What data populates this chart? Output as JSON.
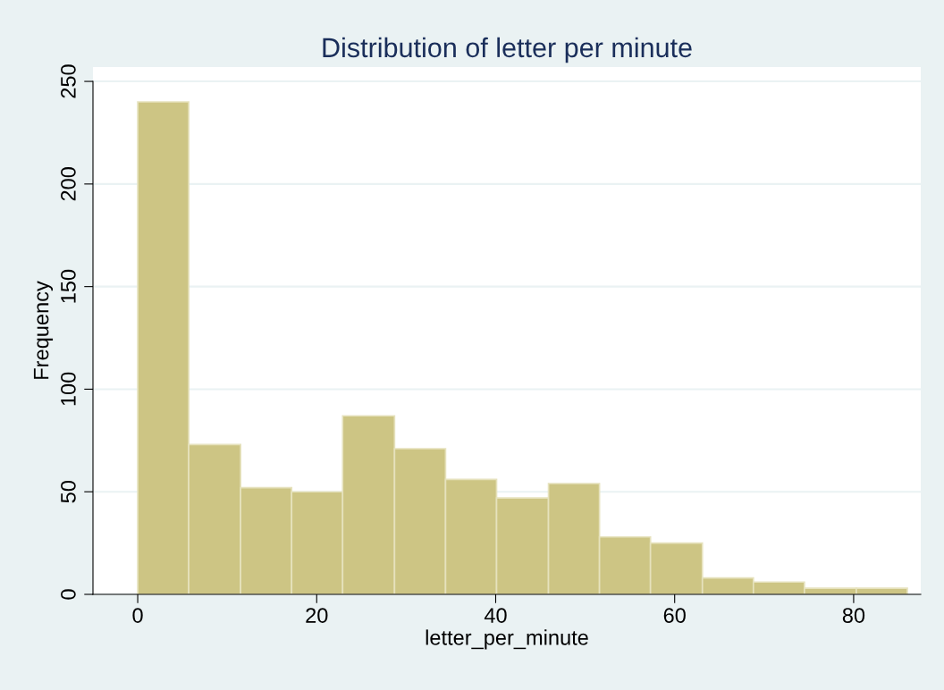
{
  "chart_data": {
    "type": "histogram",
    "title": "Distribution of letter per minute",
    "xlabel": "letter_per_minute",
    "ylabel": "Frequency",
    "bins": [
      0,
      5.7,
      11.5,
      17.2,
      22.9,
      28.7,
      34.4,
      40.1,
      45.9,
      51.6,
      57.3,
      63.1,
      68.8,
      74.5,
      80.3,
      86
    ],
    "values": [
      240,
      73,
      52,
      50,
      87,
      71,
      56,
      47,
      54,
      28,
      25,
      8,
      6,
      3,
      3
    ],
    "color": "#cdc584",
    "xlim": [
      -5,
      87.5
    ],
    "ylim": [
      0,
      257
    ],
    "xticks": [
      0,
      20,
      40,
      60,
      80
    ],
    "yticks": [
      0,
      50,
      100,
      150,
      200,
      250
    ],
    "grid": "y"
  }
}
